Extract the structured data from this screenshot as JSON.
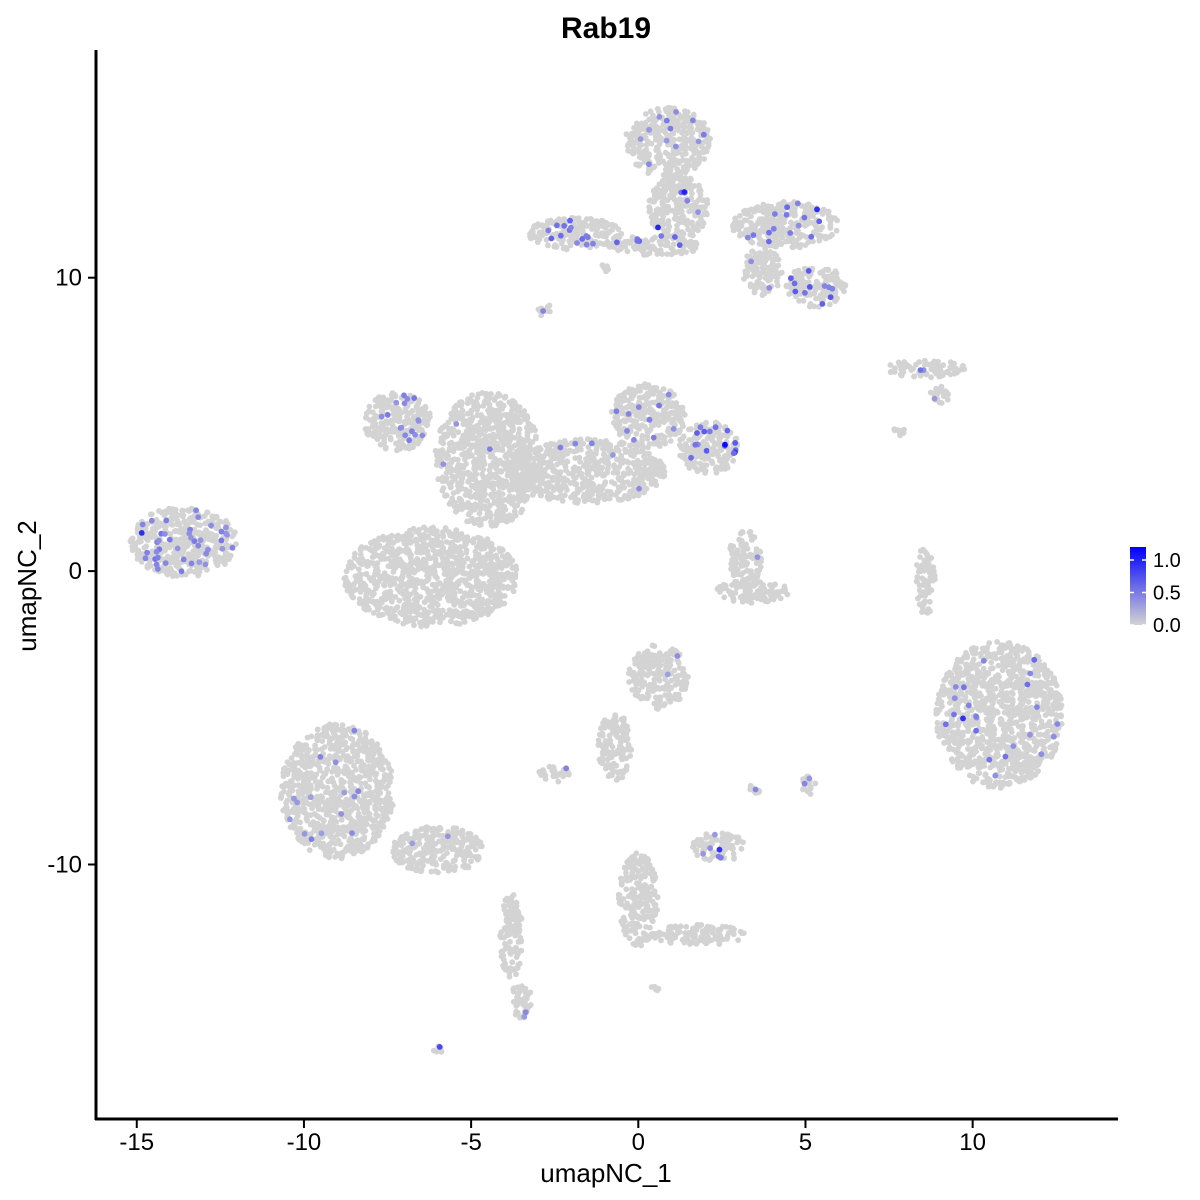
{
  "chart_data": {
    "type": "scatter",
    "title": "Rab19",
    "xlabel": "umapNC_1",
    "ylabel": "umapNC_2",
    "xlim": [
      -16.4,
      14.2
    ],
    "ylim": [
      -18.3,
      17.8
    ],
    "x_ticks": [
      -15,
      -10,
      -5,
      0,
      5,
      10
    ],
    "x_tick_labels": [
      "-15",
      "-10",
      "-5",
      "0",
      "5",
      "10"
    ],
    "y_ticks": [
      -10,
      0,
      10
    ],
    "y_tick_labels": [
      "-10",
      "0",
      "10"
    ],
    "grid": false,
    "legend": {
      "position": "right",
      "ticks": [
        0.0,
        0.5,
        1.0
      ],
      "tick_labels": [
        "0.0",
        "0.5",
        "1.0"
      ],
      "range": [
        0,
        1.2
      ],
      "low_color": "#d3d3d3",
      "high_color": "#0000ff"
    },
    "colors": {
      "background_point": "#d3d3d3",
      "expressing_point": "#9f7ff0",
      "high_point": "#1010ee"
    },
    "clusters": [
      {
        "cx": -13.6,
        "cy": 1.0,
        "rx": 1.6,
        "ry": 1.2,
        "expr_frac": 0.55,
        "mean_expr": 0.45
      },
      {
        "cx": -9.0,
        "cy": -7.5,
        "rx": 1.7,
        "ry": 2.3,
        "expr_frac": 0.1,
        "mean_expr": 0.4
      },
      {
        "cx": -6.0,
        "cy": -9.5,
        "rx": 1.4,
        "ry": 0.8,
        "expr_frac": 0.05,
        "mean_expr": 0.4
      },
      {
        "cx": -6.2,
        "cy": -0.2,
        "rx": 2.6,
        "ry": 1.7,
        "expr_frac": 0.0,
        "mean_expr": 0.0
      },
      {
        "cx": -7.2,
        "cy": 5.1,
        "rx": 1.0,
        "ry": 1.0,
        "expr_frac": 0.4,
        "mean_expr": 0.45
      },
      {
        "cx": -4.5,
        "cy": 3.8,
        "rx": 1.6,
        "ry": 2.3,
        "expr_frac": 0.02,
        "mean_expr": 0.4
      },
      {
        "cx": -1.5,
        "cy": 3.4,
        "rx": 2.3,
        "ry": 1.1,
        "expr_frac": 0.05,
        "mean_expr": 0.45
      },
      {
        "cx": 0.3,
        "cy": 5.3,
        "rx": 1.1,
        "ry": 1.1,
        "expr_frac": 0.2,
        "mean_expr": 0.45
      },
      {
        "cx": 2.1,
        "cy": 4.2,
        "rx": 0.9,
        "ry": 0.9,
        "expr_frac": 0.5,
        "mean_expr": 0.6
      },
      {
        "cx": 0.9,
        "cy": 14.6,
        "rx": 1.3,
        "ry": 1.2,
        "expr_frac": 0.2,
        "mean_expr": 0.45
      },
      {
        "cx": 1.2,
        "cy": 12.4,
        "rx": 0.9,
        "ry": 1.1,
        "expr_frac": 0.15,
        "mean_expr": 0.45
      },
      {
        "cx": -1.9,
        "cy": 11.5,
        "rx": 1.4,
        "ry": 0.55,
        "expr_frac": 0.45,
        "mean_expr": 0.55
      },
      {
        "cx": 0.5,
        "cy": 11.1,
        "rx": 1.4,
        "ry": 0.35,
        "expr_frac": 0.35,
        "mean_expr": 0.55
      },
      {
        "cx": 4.4,
        "cy": 11.8,
        "rx": 1.6,
        "ry": 0.8,
        "expr_frac": 0.3,
        "mean_expr": 0.55
      },
      {
        "cx": 5.3,
        "cy": 9.7,
        "rx": 0.9,
        "ry": 0.7,
        "expr_frac": 0.45,
        "mean_expr": 0.6
      },
      {
        "cx": 3.7,
        "cy": 10.2,
        "rx": 0.6,
        "ry": 0.8,
        "expr_frac": 0.1,
        "mean_expr": 0.45
      },
      {
        "cx": 8.6,
        "cy": 6.9,
        "rx": 1.2,
        "ry": 0.3,
        "expr_frac": 0.12,
        "mean_expr": 0.5
      },
      {
        "cx": 3.2,
        "cy": 0.4,
        "rx": 0.5,
        "ry": 1.0,
        "expr_frac": 0.05,
        "mean_expr": 0.4
      },
      {
        "cx": 3.4,
        "cy": -0.7,
        "rx": 1.1,
        "ry": 0.4,
        "expr_frac": 0.0,
        "mean_expr": 0.0
      },
      {
        "cx": 10.8,
        "cy": -4.9,
        "rx": 1.9,
        "ry": 2.5,
        "expr_frac": 0.12,
        "mean_expr": 0.5
      },
      {
        "cx": 0.6,
        "cy": -3.6,
        "rx": 0.9,
        "ry": 1.1,
        "expr_frac": 0.06,
        "mean_expr": 0.4
      },
      {
        "cx": -0.7,
        "cy": -6.0,
        "rx": 0.5,
        "ry": 1.2,
        "expr_frac": 0.0,
        "mean_expr": 0.0
      },
      {
        "cx": -2.5,
        "cy": -6.9,
        "rx": 0.5,
        "ry": 0.3,
        "expr_frac": 0.1,
        "mean_expr": 0.4
      },
      {
        "cx": 2.4,
        "cy": -9.4,
        "rx": 0.8,
        "ry": 0.5,
        "expr_frac": 0.35,
        "mean_expr": 0.45
      },
      {
        "cx": 0.0,
        "cy": -11.2,
        "rx": 0.6,
        "ry": 1.6,
        "expr_frac": 0.0,
        "mean_expr": 0.0
      },
      {
        "cx": 1.8,
        "cy": -12.4,
        "rx": 1.4,
        "ry": 0.35,
        "expr_frac": 0.0,
        "mean_expr": 0.0
      },
      {
        "cx": -3.8,
        "cy": -12.5,
        "rx": 0.35,
        "ry": 1.5,
        "expr_frac": 0.0,
        "mean_expr": 0.0
      },
      {
        "cx": -3.5,
        "cy": -14.6,
        "rx": 0.3,
        "ry": 0.7,
        "expr_frac": 0.25,
        "mean_expr": 0.4
      },
      {
        "cx": 8.6,
        "cy": -0.3,
        "rx": 0.3,
        "ry": 1.2,
        "expr_frac": 0.0,
        "mean_expr": 0.0
      },
      {
        "cx": 5.1,
        "cy": -7.3,
        "rx": 0.25,
        "ry": 0.35,
        "expr_frac": 0.6,
        "mean_expr": 0.4
      },
      {
        "cx": 3.5,
        "cy": -7.4,
        "rx": 0.2,
        "ry": 0.2,
        "expr_frac": 0.5,
        "mean_expr": 0.4
      },
      {
        "cx": -2.8,
        "cy": 8.9,
        "rx": 0.2,
        "ry": 0.25,
        "expr_frac": 0.6,
        "mean_expr": 0.4
      },
      {
        "cx": 9.0,
        "cy": 6.0,
        "rx": 0.3,
        "ry": 0.3,
        "expr_frac": 0.4,
        "mean_expr": 0.45
      },
      {
        "cx": 7.8,
        "cy": 4.8,
        "rx": 0.2,
        "ry": 0.2,
        "expr_frac": 0.2,
        "mean_expr": 0.4
      },
      {
        "cx": -6.0,
        "cy": -16.3,
        "rx": 0.15,
        "ry": 0.15,
        "expr_frac": 1.0,
        "mean_expr": 0.4
      },
      {
        "cx": -1.0,
        "cy": 10.3,
        "rx": 0.15,
        "ry": 0.15,
        "expr_frac": 0.0,
        "mean_expr": 0.0
      },
      {
        "cx": 0.5,
        "cy": -14.2,
        "rx": 0.15,
        "ry": 0.1,
        "expr_frac": 0.0,
        "mean_expr": 0.0
      }
    ]
  }
}
